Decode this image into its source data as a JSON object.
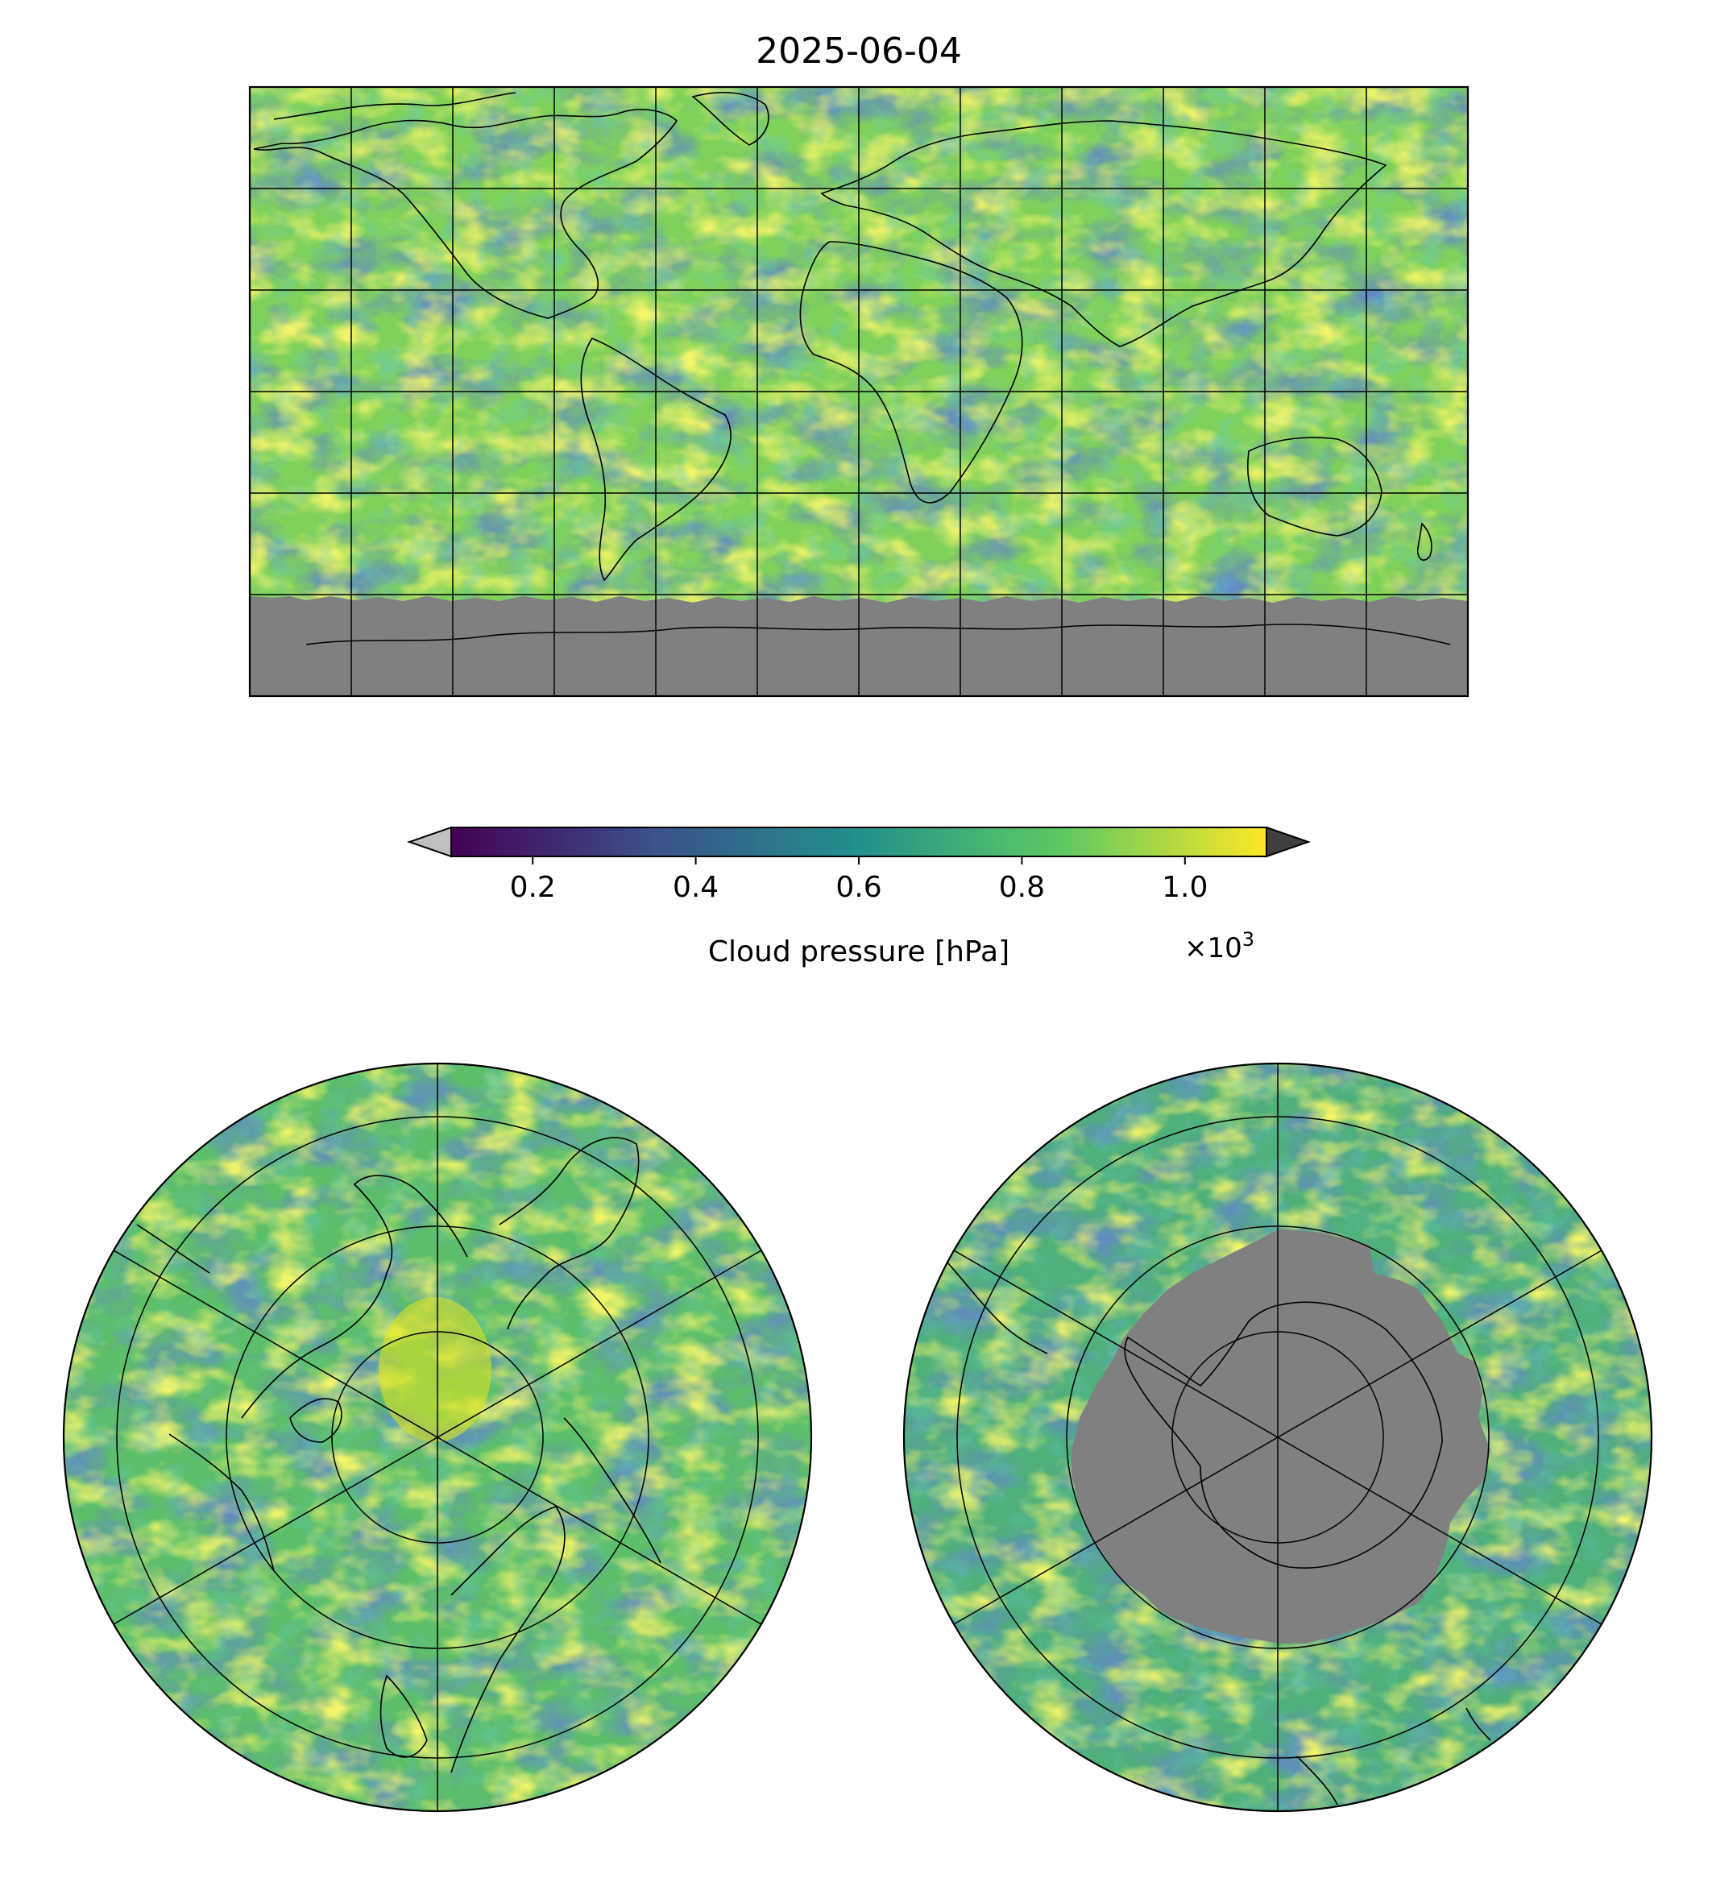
{
  "figure": {
    "title": "2025-06-04",
    "colorbar": {
      "label": "Cloud pressure [hPa]",
      "multiplier_base": "×10",
      "multiplier_exponent": "3",
      "ticks": [
        "0.2",
        "0.4",
        "0.6",
        "0.8",
        "1.0"
      ],
      "tick_values": [
        0.2,
        0.4,
        0.6,
        0.8,
        1.0
      ],
      "range": [
        0.1,
        1.1
      ],
      "under_color": "#c0c0c0",
      "over_color": "#404040",
      "colormap": "viridis"
    },
    "colors": {
      "no_data": "#808080",
      "coastline": "#000000",
      "viridis_stops": [
        "#440154",
        "#3b528b",
        "#21918c",
        "#5ec962",
        "#fde725"
      ]
    },
    "maps": [
      {
        "name": "global",
        "projection": "plate-carree",
        "gridlines": {
          "lon_step_deg": 30,
          "lat_step_deg": 30
        }
      },
      {
        "name": "north-polar",
        "projection": "north-polar-stereographic",
        "gridlines": {
          "lat_circles_deg": [
            80,
            60,
            40,
            20
          ],
          "meridians_deg": [
            0,
            60,
            120,
            180,
            240,
            300
          ]
        }
      },
      {
        "name": "south-polar",
        "projection": "south-polar-stereographic",
        "gridlines": {
          "lat_circles_deg": [
            -80,
            -60,
            -40,
            -20
          ],
          "meridians_deg": [
            0,
            60,
            120,
            180,
            240,
            300
          ]
        }
      }
    ]
  }
}
